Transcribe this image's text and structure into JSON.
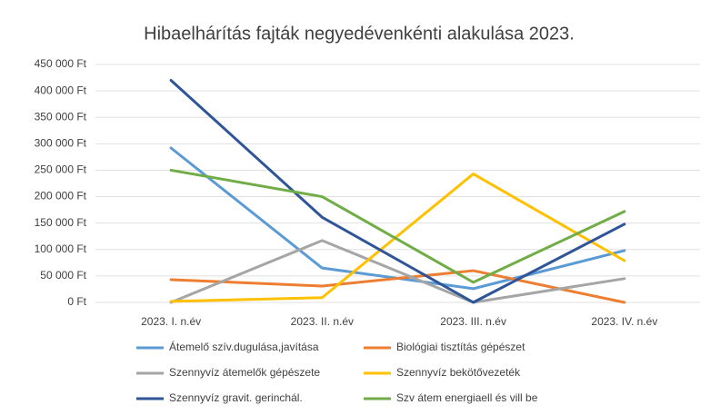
{
  "chart_data": {
    "type": "line",
    "title": "Hibaelhárítás fajták negyedévenkénti alakulása 2023.",
    "categories": [
      "2023. I. n.év",
      "2023. II. n.év",
      "2023. III. n.év",
      "2023. IV. n.év"
    ],
    "series": [
      {
        "name": "Átemelő szív.dugulása,javítása",
        "color": "#5b9bd5",
        "values": [
          292000,
          65000,
          26000,
          98000
        ]
      },
      {
        "name": "Biológiai tisztítás gépészet",
        "color": "#ed7d31",
        "values": [
          43000,
          31000,
          60000,
          0
        ]
      },
      {
        "name": "Szennyvíz átemelők gépészete",
        "color": "#a5a5a5",
        "values": [
          0,
          117000,
          0,
          45000
        ]
      },
      {
        "name": "Szennyvíz bekötővezeték",
        "color": "#ffc000",
        "values": [
          2000,
          9000,
          243000,
          79000
        ]
      },
      {
        "name": "Szennyvíz gravit. gerinchál.",
        "color": "#2f5597",
        "values": [
          420000,
          161000,
          0,
          148000
        ]
      },
      {
        "name": "Szv átem energiaell és vill be",
        "color": "#70ad47",
        "values": [
          250000,
          200000,
          38000,
          172000
        ]
      }
    ],
    "ylim": [
      0,
      450000
    ],
    "yticks": [
      {
        "value": 0,
        "label": "0 Ft"
      },
      {
        "value": 50000,
        "label": "50 000 Ft"
      },
      {
        "value": 100000,
        "label": "100 000 Ft"
      },
      {
        "value": 150000,
        "label": "150 000 Ft"
      },
      {
        "value": 200000,
        "label": "200 000 Ft"
      },
      {
        "value": 250000,
        "label": "250 000 Ft"
      },
      {
        "value": 300000,
        "label": "300 000 Ft"
      },
      {
        "value": 350000,
        "label": "350 000 Ft"
      },
      {
        "value": 400000,
        "label": "400 000 Ft"
      },
      {
        "value": 450000,
        "label": "450 000 Ft"
      }
    ],
    "grid": true
  }
}
